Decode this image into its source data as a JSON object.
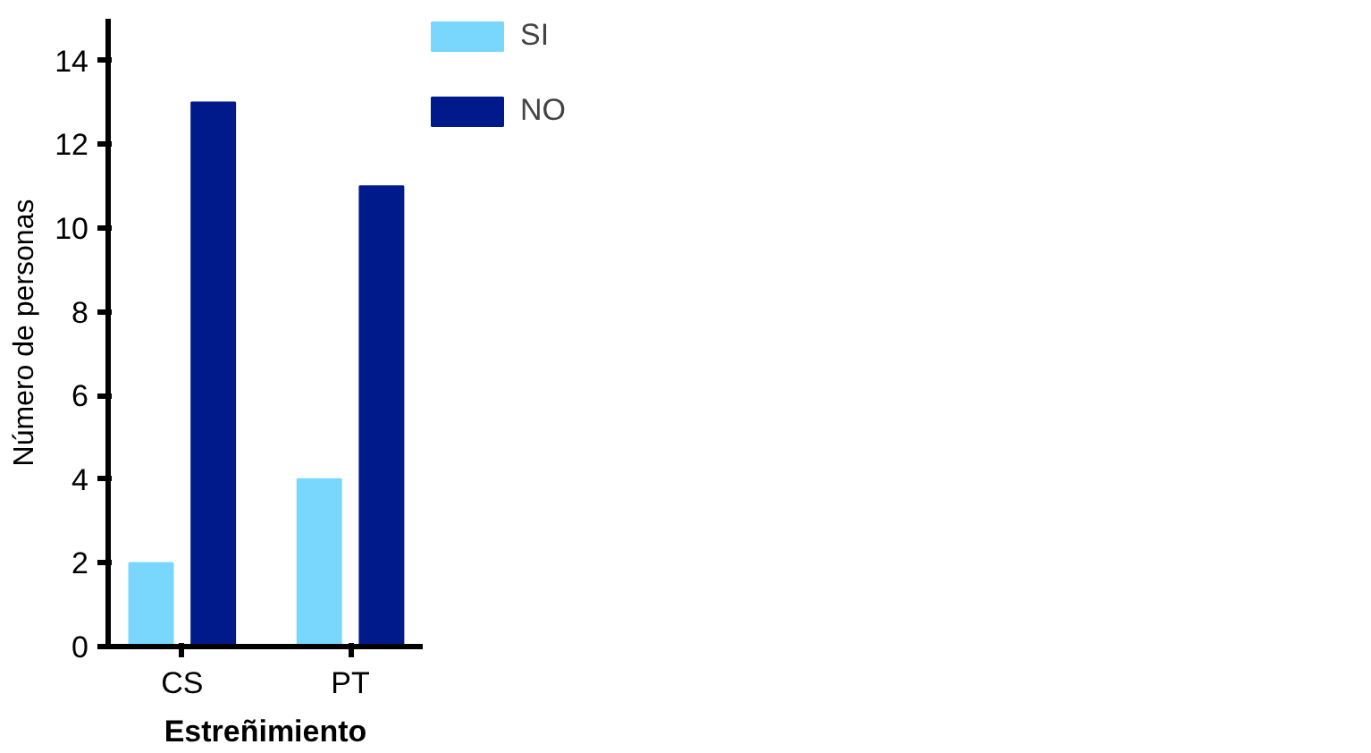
{
  "chart_data": {
    "type": "bar",
    "xlabel": "Estreñimiento",
    "ylabel": "Número de personas",
    "categories": [
      "CS",
      "PT"
    ],
    "series": [
      {
        "name": "SI",
        "color": "#79d7fd",
        "values": [
          2,
          4
        ]
      },
      {
        "name": "NO",
        "color": "#001a8c",
        "values": [
          13,
          11
        ]
      }
    ],
    "ylim": [
      0,
      15
    ],
    "yticks": [
      0,
      2,
      4,
      6,
      8,
      10,
      12,
      14
    ],
    "grid": false,
    "legend": "top right"
  }
}
